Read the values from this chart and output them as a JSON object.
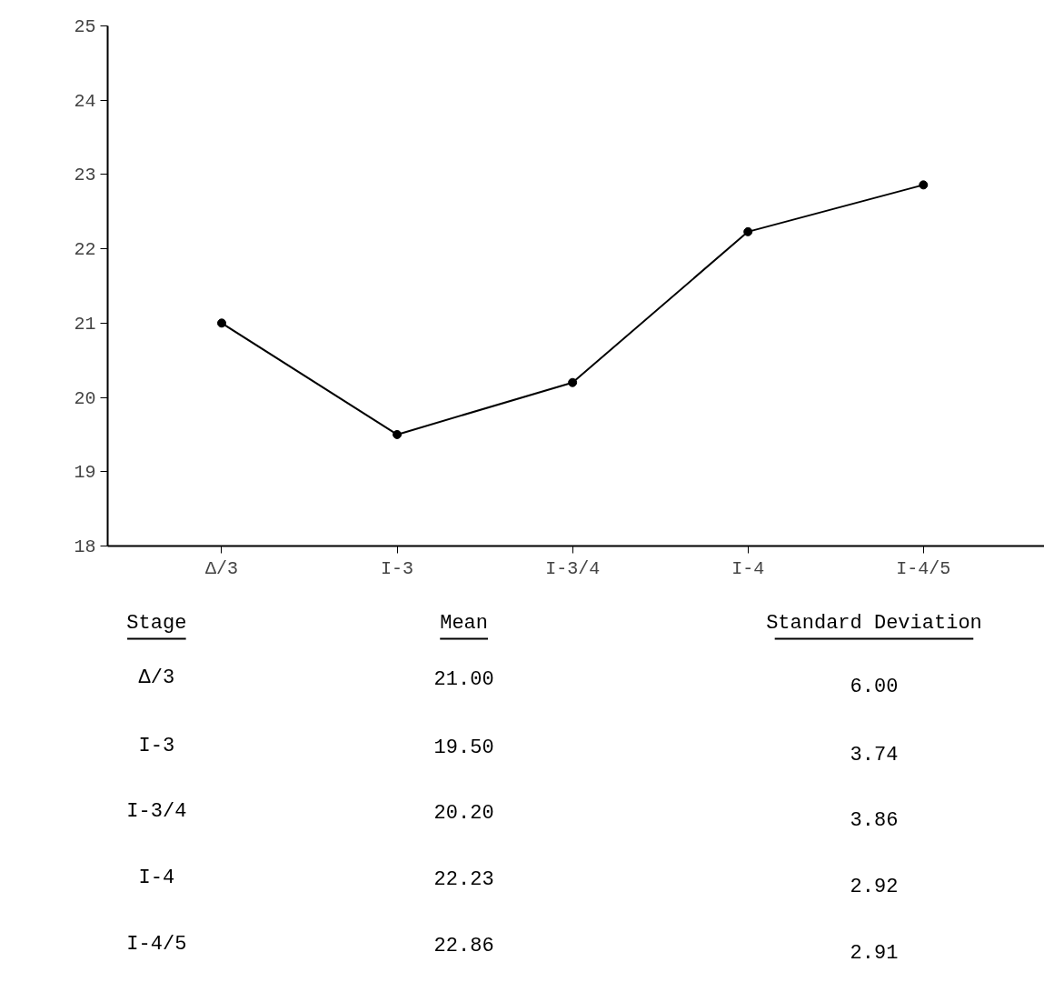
{
  "chart_data": {
    "type": "line",
    "categories": [
      "Δ/3",
      "I-3",
      "I-3/4",
      "I-4",
      "I-4/5"
    ],
    "values": [
      21.0,
      19.5,
      20.2,
      22.23,
      22.86
    ],
    "color": "#000000",
    "marker": "circle",
    "line_style": "solid",
    "ylim": [
      18,
      25
    ],
    "yticks": [
      18,
      19,
      20,
      21,
      22,
      23,
      24,
      25
    ],
    "grid": false,
    "annotations": [
      "Stage",
      "Mean",
      "Standard Deviation",
      "21.00",
      "19.50",
      "20.20",
      "22.23",
      "22.86",
      "6.00",
      "3.74",
      "3.86",
      "2.92",
      "2.91"
    ]
  }
}
